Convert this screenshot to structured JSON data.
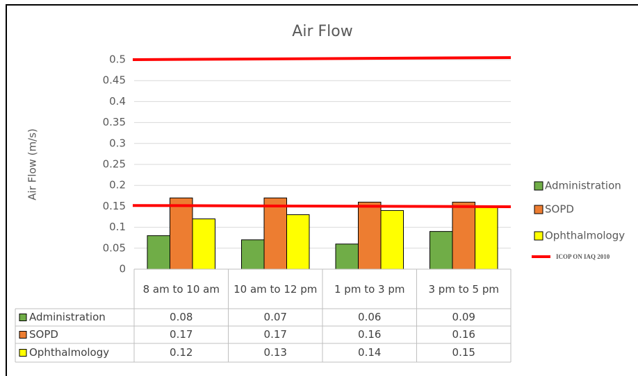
{
  "chart_data": {
    "type": "bar",
    "title": "Air Flow",
    "y_label": "Air Flow (m/s)",
    "categories": [
      "8 am to 10 am",
      "10 am to 12 pm",
      "1 pm to 3 pm",
      "3 pm to 5 pm"
    ],
    "series": [
      {
        "name": "Administration",
        "color": "#70ad47",
        "values": [
          0.08,
          0.07,
          0.06,
          0.09
        ]
      },
      {
        "name": "SOPD",
        "color": "#ed7d31",
        "values": [
          0.17,
          0.17,
          0.16,
          0.16
        ]
      },
      {
        "name": "Ophthalmology",
        "color": "#ffff00",
        "values": [
          0.12,
          0.13,
          0.14,
          0.15
        ]
      }
    ],
    "reference": {
      "name": "ICOP ON IAQ 2010",
      "color": "#ff0000",
      "lines": [
        [
          0.5,
          0.505
        ],
        [
          0.152,
          0.149
        ]
      ]
    },
    "ylim": [
      0,
      0.5
    ],
    "yticks": [
      0,
      0.05,
      0.1,
      0.15,
      0.2,
      0.25,
      0.3,
      0.35,
      0.4,
      0.45,
      0.5
    ],
    "grid": true,
    "legend": "right",
    "data_table": true
  }
}
